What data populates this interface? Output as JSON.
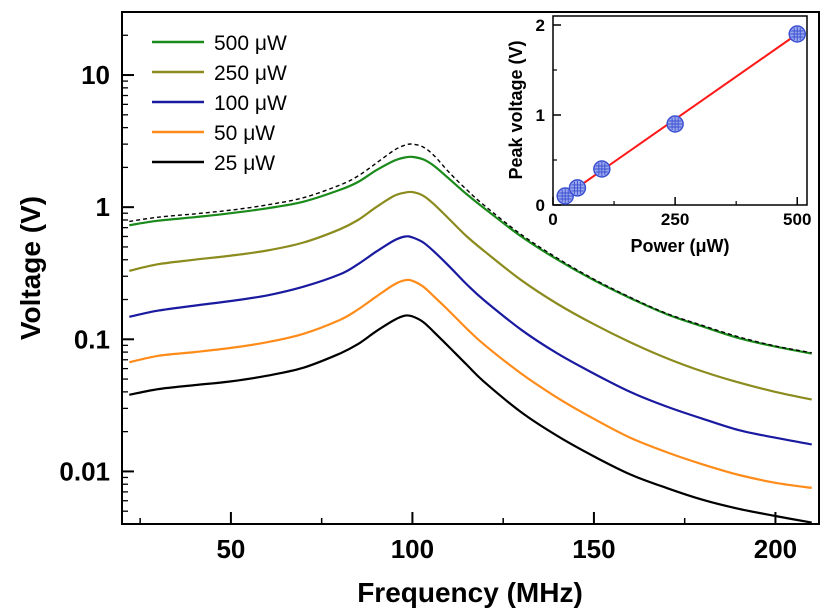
{
  "chart_data": [
    {
      "type": "line",
      "xlabel": "Frequency  (MHz)",
      "ylabel": "Voltage  (V)",
      "xlim": [
        20,
        212
      ],
      "ylim": [
        0.004,
        30
      ],
      "yscale": "log",
      "xticks": [
        50,
        100,
        150,
        200
      ],
      "xtick_labels": [
        "50",
        "100",
        "150",
        "200"
      ],
      "yticks": [
        0.01,
        0.1,
        1,
        10
      ],
      "ytick_labels": [
        "0.01",
        "0.1",
        "1",
        "10"
      ],
      "legend_position": "top-left",
      "series": [
        {
          "name": "500 μW",
          "color": "#1a8a1a",
          "peak": 2.4,
          "x": [
            22,
            30,
            40,
            50,
            60,
            70,
            80,
            85,
            90,
            95,
            98,
            100,
            103,
            106,
            110,
            115,
            120,
            130,
            140,
            150,
            160,
            170,
            180,
            190,
            200,
            210
          ],
          "values": [
            0.73,
            0.79,
            0.84,
            0.9,
            0.98,
            1.1,
            1.35,
            1.55,
            1.9,
            2.25,
            2.38,
            2.4,
            2.3,
            2.05,
            1.65,
            1.25,
            0.97,
            0.6,
            0.4,
            0.28,
            0.205,
            0.155,
            0.125,
            0.102,
            0.088,
            0.078
          ]
        },
        {
          "name": "250 μW",
          "color": "#8b8b1e",
          "peak": 1.3,
          "x": [
            22,
            30,
            40,
            50,
            60,
            70,
            80,
            85,
            90,
            95,
            98,
            100,
            103,
            106,
            110,
            115,
            120,
            130,
            140,
            150,
            160,
            170,
            180,
            190,
            200,
            210
          ],
          "values": [
            0.33,
            0.37,
            0.4,
            0.43,
            0.47,
            0.54,
            0.68,
            0.8,
            1.0,
            1.22,
            1.29,
            1.3,
            1.22,
            1.05,
            0.82,
            0.6,
            0.46,
            0.28,
            0.185,
            0.13,
            0.095,
            0.072,
            0.057,
            0.047,
            0.04,
            0.035
          ]
        },
        {
          "name": "100 μW",
          "color": "#1a1aa0",
          "peak": 0.6,
          "x": [
            22,
            30,
            40,
            50,
            60,
            70,
            80,
            85,
            90,
            95,
            98,
            100,
            103,
            106,
            110,
            115,
            120,
            130,
            140,
            150,
            160,
            170,
            180,
            190,
            200,
            210
          ],
          "values": [
            0.148,
            0.165,
            0.18,
            0.195,
            0.215,
            0.25,
            0.31,
            0.37,
            0.46,
            0.56,
            0.6,
            0.59,
            0.54,
            0.46,
            0.36,
            0.26,
            0.195,
            0.118,
            0.078,
            0.055,
            0.04,
            0.031,
            0.025,
            0.0205,
            0.018,
            0.016
          ]
        },
        {
          "name": "50 μW",
          "color": "#ff8c1a",
          "peak": 0.28,
          "x": [
            22,
            30,
            40,
            50,
            60,
            70,
            80,
            85,
            90,
            95,
            98,
            100,
            103,
            106,
            110,
            115,
            120,
            130,
            140,
            150,
            160,
            170,
            180,
            190,
            200,
            210
          ],
          "values": [
            0.067,
            0.075,
            0.08,
            0.086,
            0.095,
            0.11,
            0.14,
            0.168,
            0.21,
            0.26,
            0.28,
            0.277,
            0.25,
            0.21,
            0.165,
            0.12,
            0.09,
            0.055,
            0.036,
            0.025,
            0.018,
            0.014,
            0.0113,
            0.0094,
            0.0082,
            0.0075
          ]
        },
        {
          "name": "25 μW",
          "color": "#000000",
          "peak": 0.15,
          "x": [
            22,
            30,
            40,
            50,
            60,
            70,
            80,
            85,
            90,
            95,
            98,
            100,
            103,
            106,
            110,
            115,
            120,
            130,
            140,
            150,
            160,
            170,
            180,
            190,
            200,
            210
          ],
          "values": [
            0.038,
            0.042,
            0.045,
            0.048,
            0.053,
            0.061,
            0.078,
            0.092,
            0.115,
            0.14,
            0.151,
            0.149,
            0.135,
            0.113,
            0.088,
            0.064,
            0.047,
            0.028,
            0.0185,
            0.013,
            0.0095,
            0.0075,
            0.0061,
            0.0052,
            0.0046,
            0.0041
          ]
        }
      ],
      "reference_curve": {
        "style": "dashed",
        "color": "#000000",
        "x": [
          22,
          30,
          40,
          50,
          60,
          70,
          80,
          85,
          90,
          95,
          98,
          100,
          103,
          106,
          110,
          115,
          120,
          130,
          140,
          150,
          160,
          170,
          180,
          190,
          200,
          210
        ],
        "values": [
          0.78,
          0.84,
          0.89,
          0.95,
          1.04,
          1.18,
          1.47,
          1.72,
          2.15,
          2.7,
          2.95,
          3.0,
          2.85,
          2.45,
          1.85,
          1.35,
          1.02,
          0.62,
          0.41,
          0.285,
          0.208,
          0.157,
          0.127,
          0.104,
          0.089,
          0.079
        ]
      }
    },
    {
      "type": "scatter",
      "xlabel": "Power (μW)",
      "ylabel": "Peak voltage  (V)",
      "xlim": [
        0,
        520
      ],
      "ylim": [
        0,
        2.1
      ],
      "xticks": [
        0,
        250,
        500
      ],
      "xtick_labels": [
        "0",
        "250",
        "500"
      ],
      "yticks": [
        0,
        1,
        2
      ],
      "ytick_labels": [
        "0",
        "1",
        "2"
      ],
      "points": {
        "x": [
          25,
          50,
          100,
          250,
          500
        ],
        "values": [
          0.1,
          0.19,
          0.4,
          0.9,
          1.9
        ],
        "color": "#3a4fd0"
      },
      "fit_line": {
        "x": [
          25,
          500
        ],
        "values": [
          0.1,
          1.9
        ],
        "color": "#ff1a1a"
      }
    }
  ]
}
